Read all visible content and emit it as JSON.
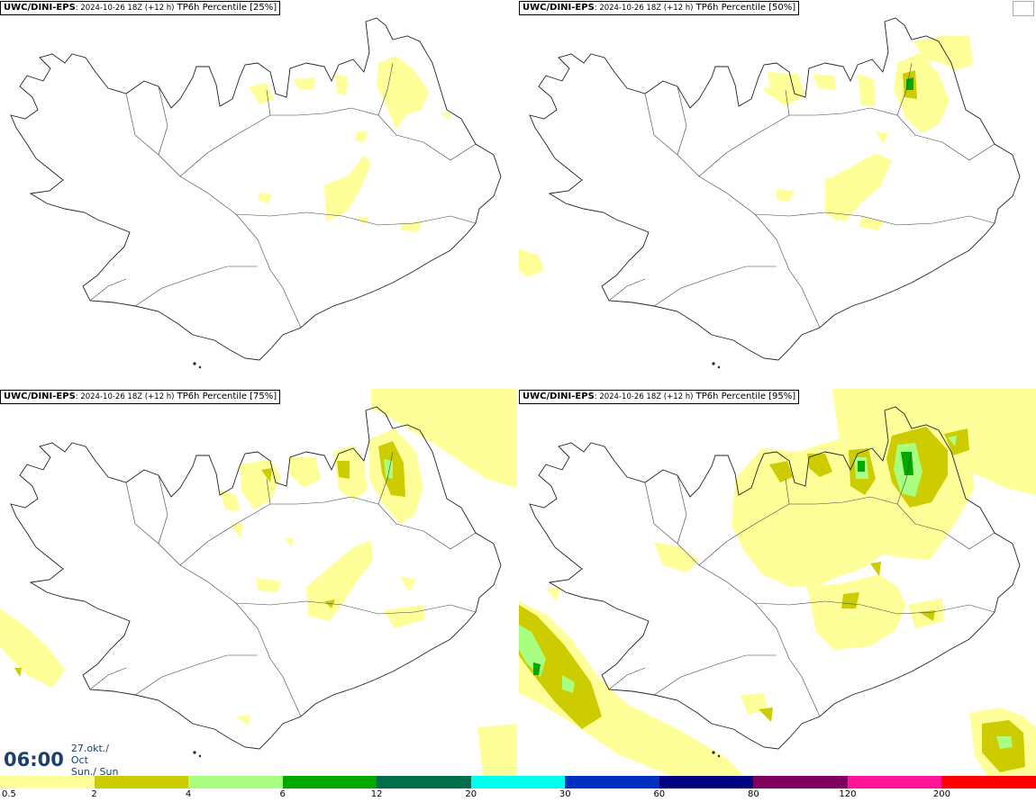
{
  "panels": [
    {
      "source": "UWC/DINI-EPS",
      "run": ": 2024-10-26 18Z (+12 h)",
      "field": " TP6h Percentile [25%]"
    },
    {
      "source": "UWC/DINI-EPS",
      "run": ": 2024-10-26 18Z (+12 h)",
      "field": " TP6h Percentile [50%]"
    },
    {
      "source": "UWC/DINI-EPS",
      "run": ": 2024-10-26 18Z (+12 h)",
      "field": " TP6h Percentile [75%]"
    },
    {
      "source": "UWC/DINI-EPS",
      "run": ": 2024-10-26 18Z (+12 h)",
      "field": " TP6h Percentile [95%]"
    }
  ],
  "valid_time": {
    "time": "06:00",
    "date": "27.okt./ Oct",
    "day": "Sun./ Sun"
  },
  "legend": {
    "bins": [
      {
        "from": "0.5",
        "color": "#ffff9a"
      },
      {
        "from": "2",
        "color": "#cccc00"
      },
      {
        "from": "4",
        "color": "#a8ff80"
      },
      {
        "from": "6",
        "color": "#00a800"
      },
      {
        "from": "12",
        "color": "#006e4a"
      },
      {
        "from": "20",
        "color": "#00ffee"
      },
      {
        "from": "30",
        "color": "#0030c0"
      },
      {
        "from": "60",
        "color": "#000080"
      },
      {
        "from": "80",
        "color": "#800060"
      },
      {
        "from": "120",
        "color": "#ff1499"
      },
      {
        "from": "200",
        "color": "#ff0000"
      }
    ]
  }
}
